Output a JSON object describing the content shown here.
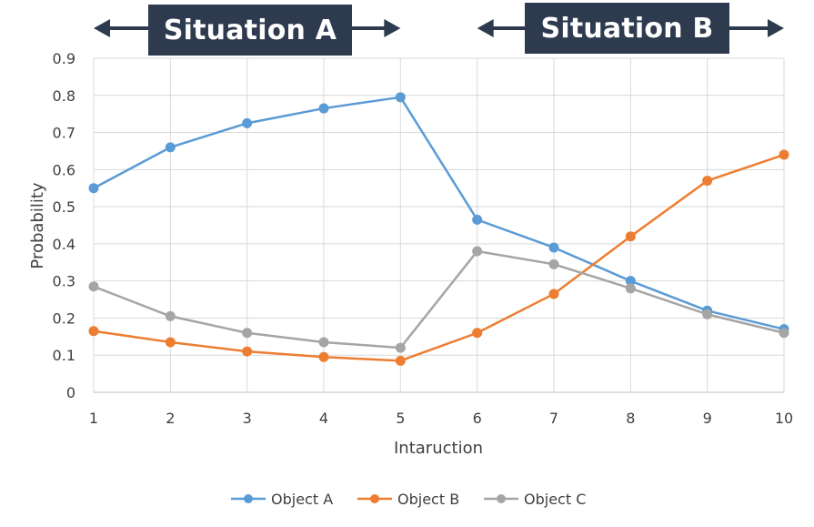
{
  "chart_data": {
    "type": "line",
    "title": "",
    "xlabel": "Intaruction",
    "ylabel": "Probability",
    "x": [
      1,
      2,
      3,
      4,
      5,
      6,
      7,
      8,
      9,
      10
    ],
    "ylim": [
      0,
      0.9
    ],
    "yticks": [
      "0",
      "0.1",
      "0.2",
      "0.3",
      "0.4",
      "0.5",
      "0.6",
      "0.7",
      "0.8",
      "0.9"
    ],
    "xticks": [
      "1",
      "2",
      "3",
      "4",
      "5",
      "6",
      "7",
      "8",
      "9",
      "10"
    ],
    "grid": true,
    "legend_position": "bottom",
    "series": [
      {
        "name": "Object A",
        "color": "#5b9bd5",
        "values": [
          0.55,
          0.66,
          0.725,
          0.765,
          0.795,
          0.465,
          0.39,
          0.3,
          0.22,
          0.17
        ]
      },
      {
        "name": "Object B",
        "color": "#ed7d31",
        "values": [
          0.165,
          0.135,
          0.11,
          0.095,
          0.085,
          0.16,
          0.265,
          0.42,
          0.57,
          0.64
        ]
      },
      {
        "name": "Object C",
        "color": "#a5a5a5",
        "values": [
          0.285,
          0.205,
          0.16,
          0.135,
          0.12,
          0.38,
          0.345,
          0.28,
          0.21,
          0.16
        ]
      }
    ],
    "annotations": [
      {
        "label": "Situation A",
        "range": [
          1,
          5
        ]
      },
      {
        "label": "Situation B",
        "range": [
          6,
          10
        ]
      }
    ]
  }
}
